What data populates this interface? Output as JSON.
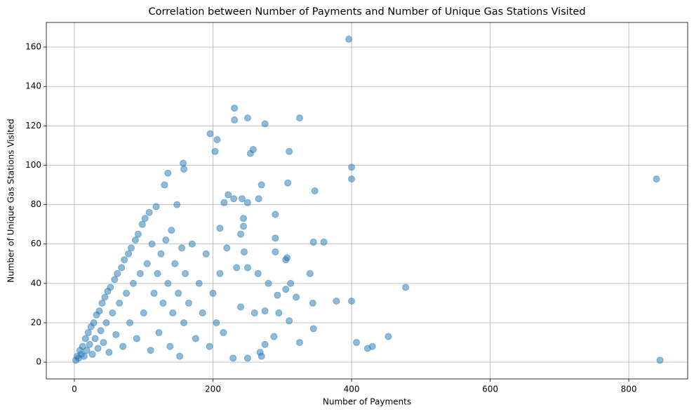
{
  "chart_data": {
    "type": "scatter",
    "title": "Correlation between Number of Payments and Number of Unique Gas Stations Visited",
    "x_label": "Number of Payments",
    "y_label": "Number of Unique Gas Stations Visited",
    "xlim": [
      -40.5,
      885
    ],
    "ylim": [
      -8.5,
      172.5
    ],
    "xticks": [
      0,
      200,
      400,
      600,
      800
    ],
    "yticks": [
      0,
      20,
      40,
      60,
      80,
      100,
      120,
      140,
      160
    ],
    "grid": true,
    "alpha": 0.5,
    "series": [
      {
        "color": "#1f77b4",
        "x": [
          2,
          4,
          6,
          8,
          10,
          12,
          14,
          16,
          18,
          20,
          22,
          24,
          26,
          28,
          30,
          32,
          34,
          36,
          38,
          40,
          42,
          44,
          46,
          48,
          50,
          52,
          55,
          58,
          60,
          62,
          65,
          68,
          70,
          72,
          75,
          78,
          80,
          82,
          85,
          88,
          90,
          92,
          95,
          98,
          100,
          102,
          105,
          108,
          110,
          112,
          115,
          118,
          120,
          122,
          125,
          128,
          130,
          132,
          135,
          138,
          140,
          142,
          145,
          148,
          150,
          152,
          155,
          158,
          160,
          165,
          170,
          175,
          180,
          185,
          190,
          195,
          200,
          205,
          210,
          215,
          396,
          231,
          325,
          250,
          231,
          275,
          196,
          206,
          310,
          254,
          258,
          203,
          157,
          158,
          135,
          400,
          400,
          270,
          308,
          840,
          347,
          845,
          478,
          453,
          407,
          423,
          430,
          400,
          378,
          360,
          345,
          340,
          344,
          345,
          325,
          320,
          310,
          312,
          305,
          305,
          307,
          290,
          290,
          290,
          288,
          270,
          266,
          242,
          222,
          216,
          230,
          250,
          210,
          220,
          240,
          244,
          244,
          245,
          234,
          250,
          265,
          280,
          293,
          229,
          250,
          268,
          275,
          240,
          260,
          275,
          295
        ],
        "values": [
          1,
          3,
          2,
          6,
          4,
          8,
          3,
          12,
          6,
          15,
          9,
          18,
          4,
          20,
          12,
          24,
          7,
          26,
          16,
          30,
          10,
          33,
          20,
          36,
          5,
          38,
          25,
          42,
          14,
          45,
          30,
          48,
          8,
          52,
          35,
          55,
          20,
          58,
          40,
          62,
          12,
          65,
          45,
          70,
          25,
          73,
          50,
          76,
          6,
          60,
          35,
          79,
          45,
          15,
          55,
          30,
          90,
          62,
          40,
          8,
          67,
          25,
          50,
          80,
          35,
          3,
          58,
          20,
          45,
          30,
          60,
          12,
          40,
          25,
          55,
          8,
          35,
          20,
          45,
          15,
          164,
          129,
          124,
          124,
          123,
          121,
          116,
          113,
          107,
          106,
          108,
          107,
          101,
          98,
          96,
          99,
          93,
          90,
          91,
          93,
          87,
          1,
          38,
          13,
          10,
          7,
          8,
          31,
          31,
          61,
          61,
          45,
          30,
          17,
          10,
          33,
          21,
          40,
          37,
          52,
          53,
          63,
          56,
          75,
          13,
          3,
          83,
          83,
          85,
          81,
          83,
          81,
          68,
          58,
          65,
          73,
          69,
          56,
          48,
          48,
          45,
          40,
          34,
          2,
          2,
          5,
          9,
          28,
          25,
          26,
          25
        ]
      }
    ]
  }
}
